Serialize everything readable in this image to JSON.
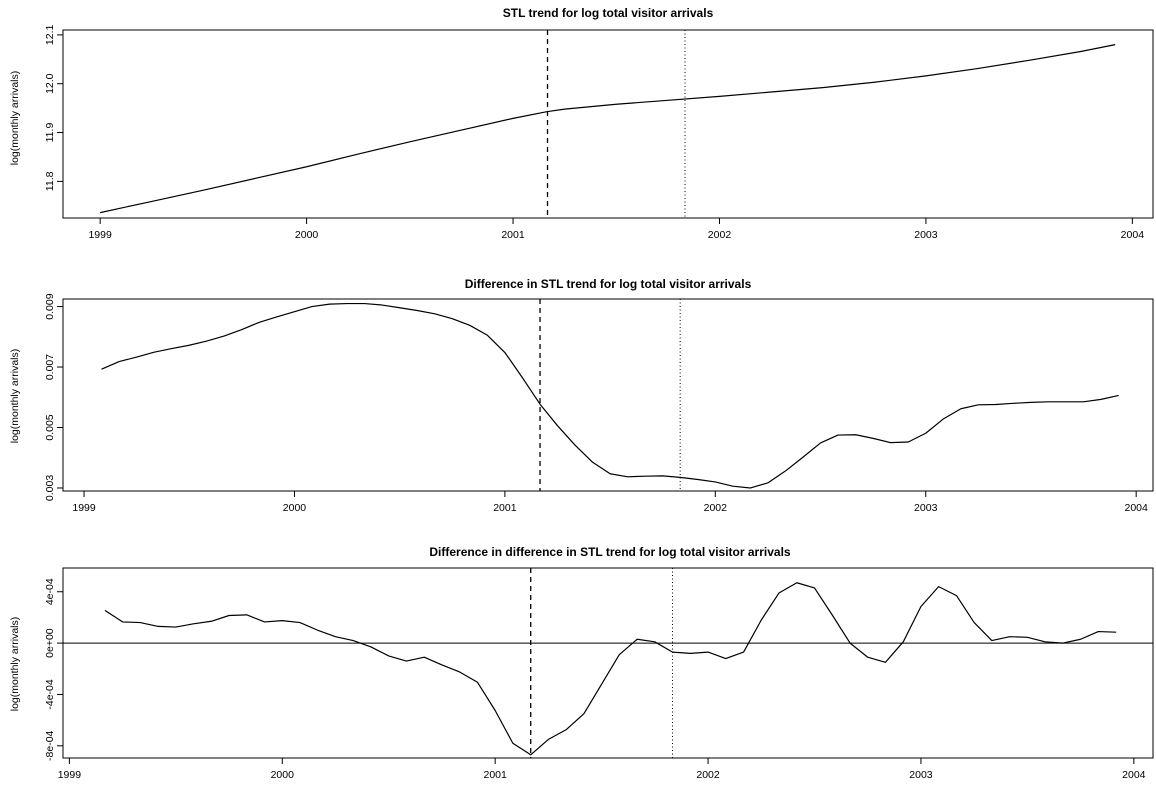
{
  "chart_data": [
    {
      "type": "line",
      "title": "STL trend for log total visitor arrivals",
      "ylabel": "log(monthly arrivals)",
      "xlim": [
        1998.82,
        2004.1
      ],
      "ylim": [
        11.725,
        12.11
      ],
      "xticks": [
        1999,
        2000,
        2001,
        2002,
        2003,
        2004
      ],
      "xtick_labels": [
        "1999",
        "2000",
        "2001",
        "2002",
        "2003",
        "2004"
      ],
      "yticks": [
        11.8,
        11.9,
        12.0,
        12.1
      ],
      "ytick_labels": [
        "11.8",
        "11.9",
        "12.0",
        "12.1"
      ],
      "vlines": [
        {
          "x": 2001.167,
          "style": "dashed"
        },
        {
          "x": 2001.833,
          "style": "dotted"
        }
      ],
      "hline": null,
      "x": [
        1999.0,
        1999.25,
        1999.5,
        1999.75,
        2000.0,
        2000.25,
        2000.5,
        2000.75,
        2001.0,
        2001.167,
        2001.25,
        2001.5,
        2001.75,
        2002.0,
        2002.25,
        2002.5,
        2002.75,
        2003.0,
        2003.25,
        2003.5,
        2003.75,
        2003.917
      ],
      "y": [
        11.736,
        11.759,
        11.782,
        11.806,
        11.83,
        11.856,
        11.881,
        11.905,
        11.929,
        11.943,
        11.948,
        11.958,
        11.966,
        11.974,
        11.983,
        11.992,
        12.003,
        12.016,
        12.031,
        12.048,
        12.066,
        12.08
      ]
    },
    {
      "type": "line",
      "title": "Difference in STL trend for log total visitor arrivals",
      "ylabel": "log(monthly arrivals)",
      "xlim": [
        1998.9,
        2004.08
      ],
      "ylim": [
        0.0029,
        0.00925
      ],
      "xticks": [
        1999,
        2000,
        2001,
        2002,
        2003,
        2004
      ],
      "xtick_labels": [
        "1999",
        "2000",
        "2001",
        "2002",
        "2003",
        "2004"
      ],
      "yticks": [
        0.003,
        0.005,
        0.007,
        0.009
      ],
      "ytick_labels": [
        "0.003",
        "0.005",
        "0.007",
        "0.009"
      ],
      "vlines": [
        {
          "x": 2001.167,
          "style": "dashed"
        },
        {
          "x": 2001.833,
          "style": "dotted"
        }
      ],
      "hline": null,
      "x": [
        1999.083,
        1999.167,
        1999.25,
        1999.333,
        1999.417,
        1999.5,
        1999.583,
        1999.667,
        1999.75,
        1999.833,
        1999.917,
        2000.0,
        2000.083,
        2000.167,
        2000.25,
        2000.333,
        2000.417,
        2000.5,
        2000.583,
        2000.667,
        2000.75,
        2000.833,
        2000.917,
        2001.0,
        2001.083,
        2001.167,
        2001.25,
        2001.333,
        2001.417,
        2001.5,
        2001.583,
        2001.667,
        2001.75,
        2001.833,
        2001.917,
        2002.0,
        2002.083,
        2002.167,
        2002.25,
        2002.333,
        2002.417,
        2002.5,
        2002.583,
        2002.667,
        2002.75,
        2002.833,
        2002.917,
        2003.0,
        2003.083,
        2003.167,
        2003.25,
        2003.333,
        2003.417,
        2003.5,
        2003.583,
        2003.667,
        2003.75,
        2003.833,
        2003.917
      ],
      "y": [
        0.00693,
        0.00718,
        0.00733,
        0.00749,
        0.00761,
        0.00772,
        0.00786,
        0.00803,
        0.00824,
        0.00848,
        0.00866,
        0.00883,
        0.009,
        0.00908,
        0.0091,
        0.0091,
        0.00905,
        0.00896,
        0.00887,
        0.00876,
        0.0086,
        0.00838,
        0.00805,
        0.00748,
        0.00665,
        0.00577,
        0.00506,
        0.00442,
        0.00385,
        0.00347,
        0.00337,
        0.00339,
        0.0034,
        0.00335,
        0.00328,
        0.0032,
        0.00306,
        0.003,
        0.00317,
        0.00356,
        0.00402,
        0.00449,
        0.00475,
        0.00476,
        0.00464,
        0.0045,
        0.00452,
        0.00481,
        0.00528,
        0.00562,
        0.00575,
        0.00576,
        0.0058,
        0.00583,
        0.00585,
        0.00585,
        0.00585,
        0.00593,
        0.00606
      ]
    },
    {
      "type": "line",
      "title": "Difference in difference in STL trend for log total visitor arrivals",
      "ylabel": "log(monthly arrivals)",
      "xlim": [
        1998.97,
        2004.09
      ],
      "ylim": [
        -0.000895,
        0.000585
      ],
      "xticks": [
        1999,
        2000,
        2001,
        2002,
        2003,
        2004
      ],
      "xtick_labels": [
        "1999",
        "2000",
        "2001",
        "2002",
        "2003",
        "2004"
      ],
      "yticks": [
        -0.0008,
        -0.0004,
        0.0,
        0.0004
      ],
      "ytick_labels": [
        "-8e-04",
        "-4e-04",
        "0e+00",
        "4e-04"
      ],
      "vlines": [
        {
          "x": 2001.167,
          "style": "dashed"
        },
        {
          "x": 2001.833,
          "style": "dotted"
        }
      ],
      "hline": 0,
      "x": [
        1999.167,
        1999.25,
        1999.333,
        1999.417,
        1999.5,
        1999.583,
        1999.667,
        1999.75,
        1999.833,
        1999.917,
        2000.0,
        2000.083,
        2000.167,
        2000.25,
        2000.333,
        2000.417,
        2000.5,
        2000.583,
        2000.667,
        2000.75,
        2000.833,
        2000.917,
        2001.0,
        2001.083,
        2001.167,
        2001.25,
        2001.333,
        2001.417,
        2001.5,
        2001.583,
        2001.667,
        2001.75,
        2001.833,
        2001.917,
        2002.0,
        2002.083,
        2002.167,
        2002.25,
        2002.333,
        2002.417,
        2002.5,
        2002.583,
        2002.667,
        2002.75,
        2002.833,
        2002.917,
        2003.0,
        2003.083,
        2003.167,
        2003.25,
        2003.333,
        2003.417,
        2003.5,
        2003.583,
        2003.667,
        2003.75,
        2003.833,
        2003.917
      ],
      "y": [
        0.000255,
        0.000165,
        0.00016,
        0.00013,
        0.000125,
        0.00015,
        0.00017,
        0.000215,
        0.00022,
        0.000165,
        0.000175,
        0.00016,
        0.0001,
        5e-05,
        2e-05,
        -3e-05,
        -0.0001,
        -0.00014,
        -0.00011,
        -0.00017,
        -0.000225,
        -0.000305,
        -0.000525,
        -0.00078,
        -0.00087,
        -0.00075,
        -0.000675,
        -0.00055,
        -0.00032,
        -9e-05,
        3e-05,
        1e-05,
        -7e-05,
        -8e-05,
        -7e-05,
        -0.00012,
        -7e-05,
        0.00018,
        0.00039,
        0.00047,
        0.00043,
        0.00022,
        0.0,
        -0.00011,
        -0.00015,
        1e-05,
        0.000285,
        0.00044,
        0.00037,
        0.00016,
        2e-05,
        5e-05,
        4.5e-05,
        1e-05,
        0.0,
        3e-05,
        9e-05,
        8.5e-05
      ]
    }
  ]
}
